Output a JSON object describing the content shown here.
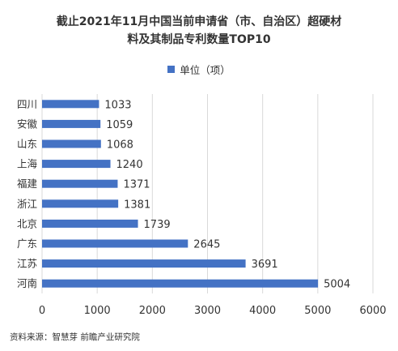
{
  "chart_data": {
    "type": "bar",
    "orientation": "horizontal",
    "title": "截止2021年11月中国当前申请省（市、自治区）超硬材料及其制品专利数量TOP10",
    "title_lines": [
      "截止2021年11月中国当前申请省（市、自治区）超硬材",
      "料及其制品专利数量TOP10"
    ],
    "categories": [
      "四川",
      "安徽",
      "山东",
      "上海",
      "福建",
      "浙江",
      "北京",
      "广东",
      "江苏",
      "河南"
    ],
    "series": [
      {
        "name": "单位（项）",
        "values": [
          1033,
          1059,
          1068,
          1240,
          1371,
          1381,
          1739,
          2645,
          3691,
          5004
        ],
        "color": "#4472C4"
      }
    ],
    "xlim": [
      0,
      6000
    ],
    "x_ticks": [
      0,
      1000,
      2000,
      3000,
      4000,
      5000,
      6000
    ],
    "grid": true,
    "legend_position": "top"
  },
  "source_text": "资料来源：智慧芽 前瞻产业研究院",
  "colors": {
    "bar": "#4472C4",
    "grid": "#d9d9d9",
    "text": "#333333"
  }
}
